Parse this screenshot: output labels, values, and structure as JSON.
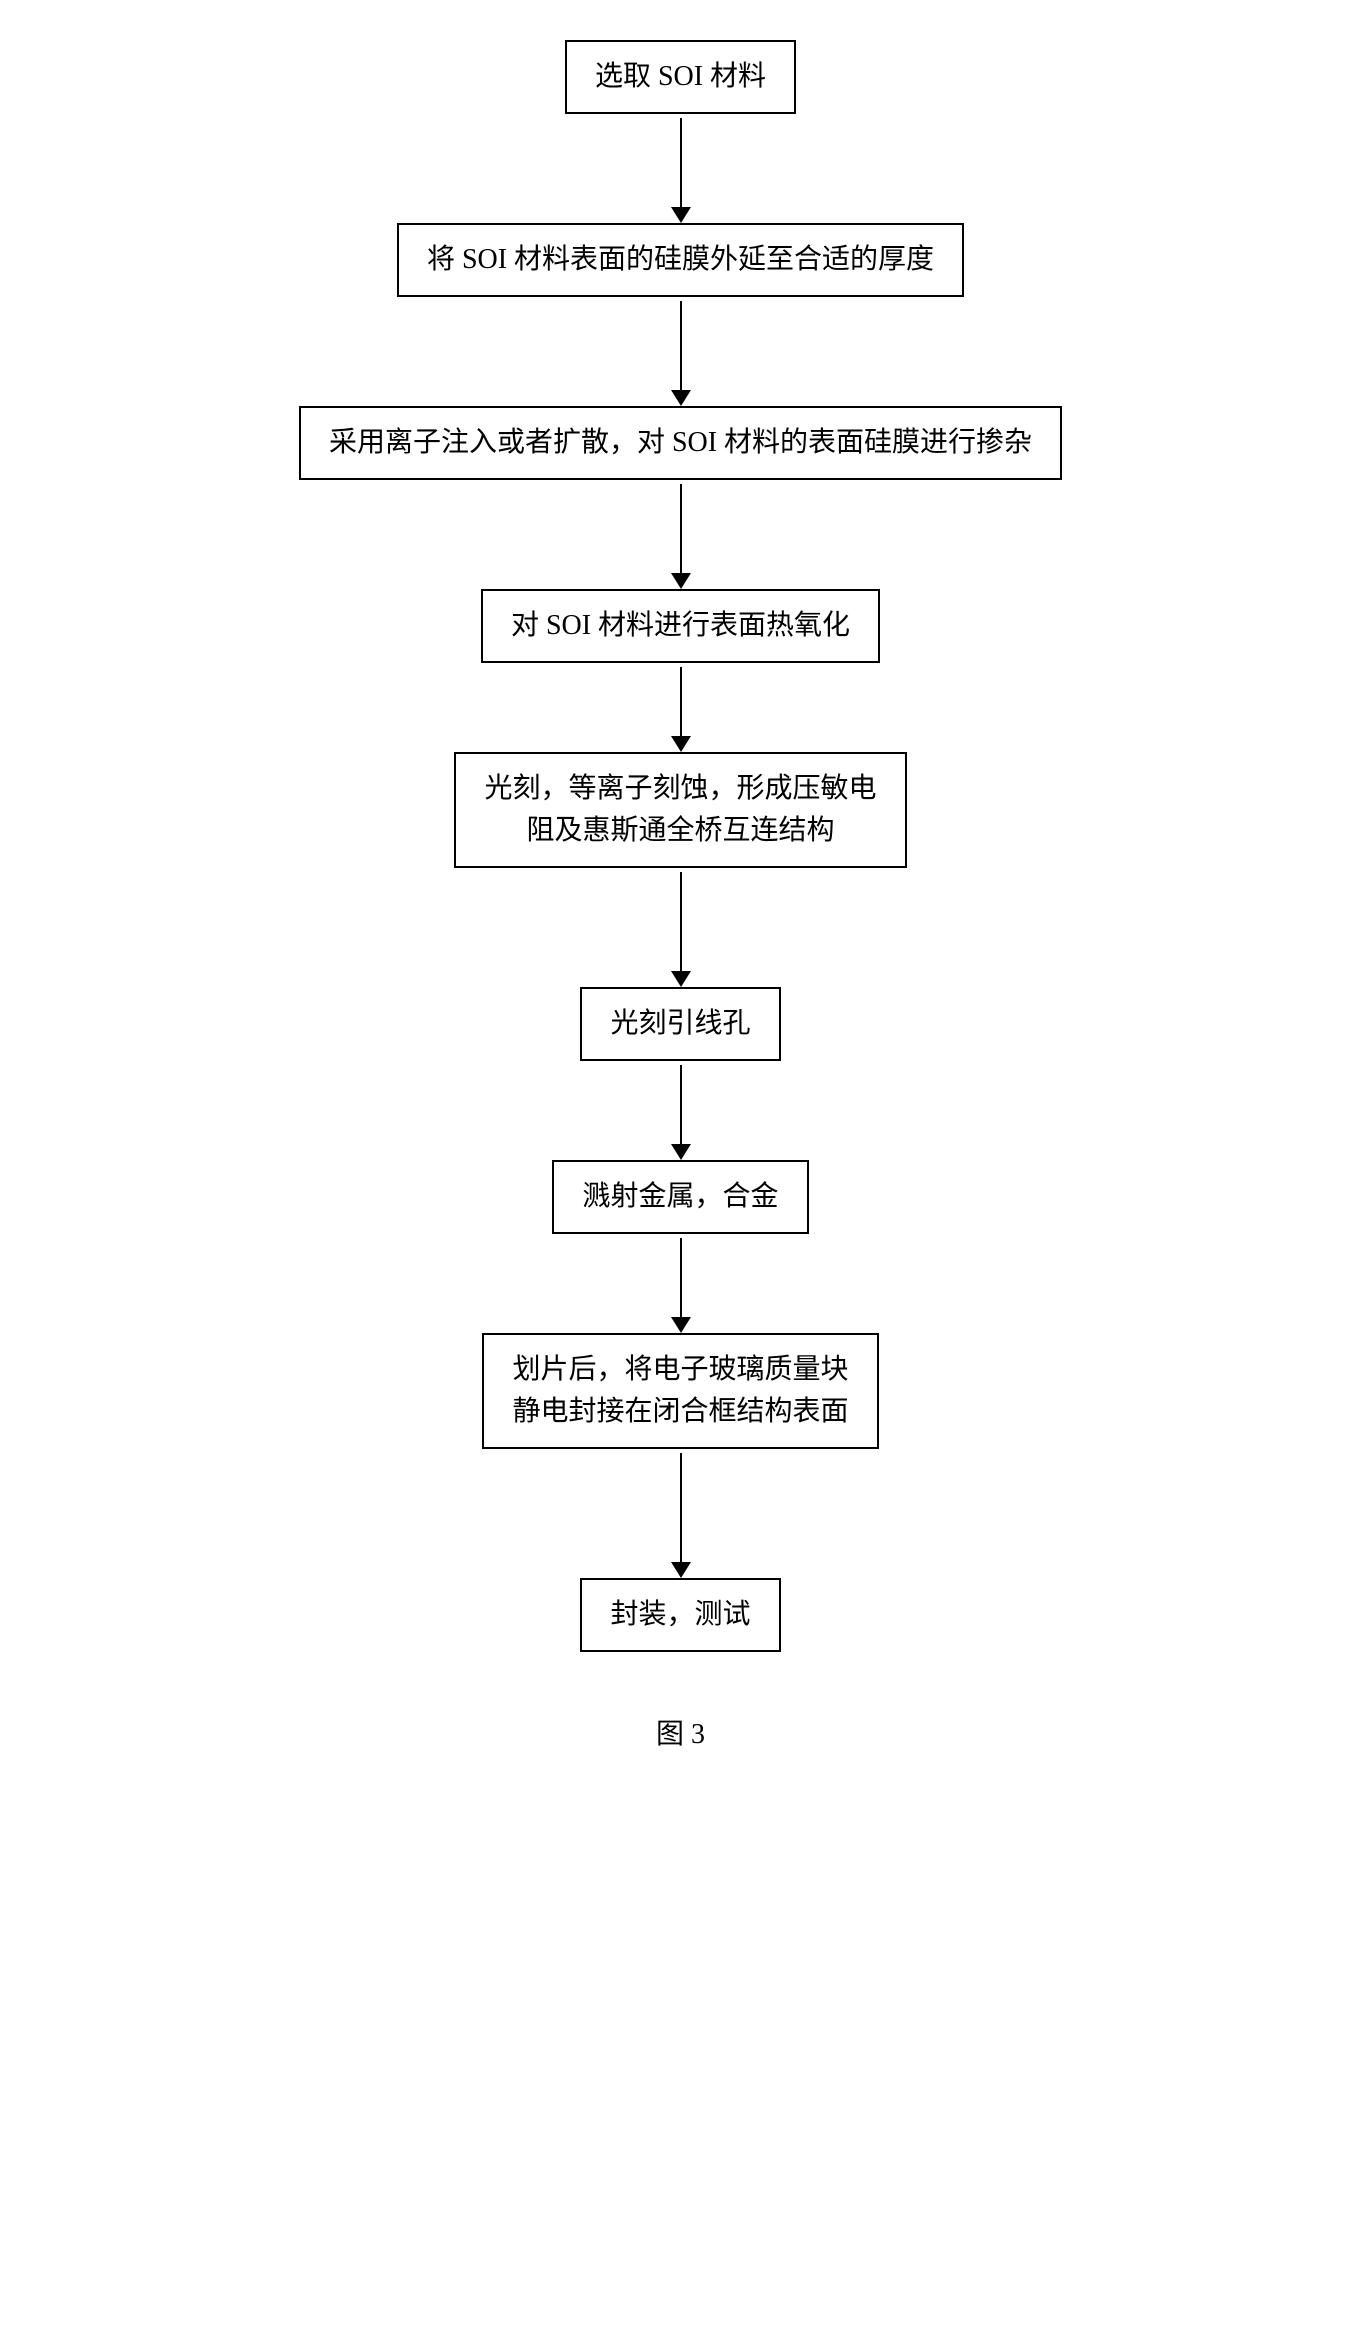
{
  "flowchart": {
    "type": "flowchart",
    "direction": "vertical",
    "box_border_color": "#000000",
    "box_border_width": 2,
    "box_background": "#ffffff",
    "font_family": "SimSun",
    "font_size_pt": 21,
    "arrow_color": "#000000",
    "arrow_line_width": 2,
    "arrow_head_width": 20,
    "arrow_head_height": 16,
    "steps": [
      {
        "label": "选取 SOI 材料",
        "arrow_height": 90
      },
      {
        "label": "将 SOI 材料表面的硅膜外延至合适的厚度",
        "arrow_height": 90
      },
      {
        "label": "采用离子注入或者扩散，对 SOI 材料的表面硅膜进行掺杂",
        "arrow_height": 90
      },
      {
        "label": "对 SOI 材料进行表面热氧化",
        "arrow_height": 70
      },
      {
        "label": "光刻，等离子刻蚀，形成压敏电\n阻及惠斯通全桥互连结构",
        "arrow_height": 100
      },
      {
        "label": "光刻引线孔",
        "arrow_height": 80
      },
      {
        "label": "溅射金属，合金",
        "arrow_height": 80
      },
      {
        "label": "划片后，将电子玻璃质量块\n静电封接在闭合框结构表面",
        "arrow_height": 110
      },
      {
        "label": "封装，测试",
        "arrow_height": 0
      }
    ]
  },
  "caption": "图 3"
}
